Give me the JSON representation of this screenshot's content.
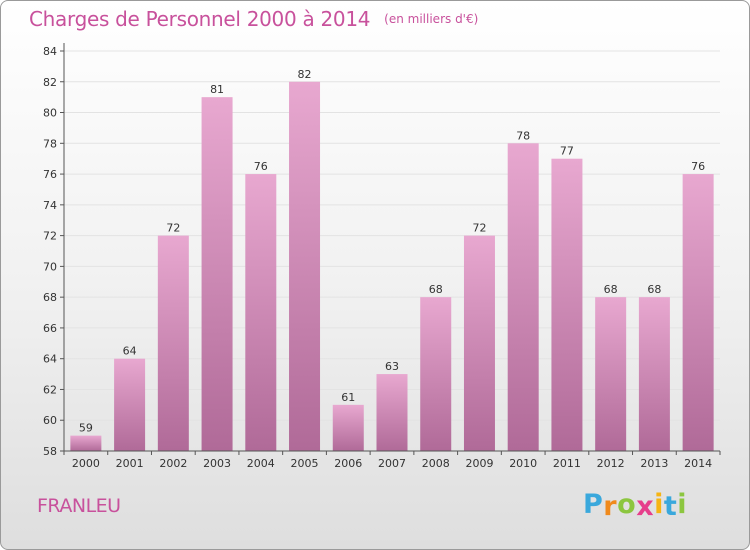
{
  "header": {
    "title": "Charges de Personnel 2000 à 2014",
    "subtitle": "(en milliers d'€)"
  },
  "footer": {
    "commune": "FRANLEU",
    "logo": "Proxiti"
  },
  "colors": {
    "bar_light": "#e8a8d0",
    "bar_dark": "#b06a98",
    "title": "#c8519c",
    "axis": "#555555",
    "grid": "#e3e3e3"
  },
  "logo_letters": [
    {
      "char": "P",
      "color": "#3aa8dc"
    },
    {
      "char": "r",
      "color": "#f08a1c"
    },
    {
      "char": "o",
      "color": "#8cc63f"
    },
    {
      "char": "x",
      "color": "#e63e8b"
    },
    {
      "char": "i",
      "color": "#f6b413"
    },
    {
      "char": "t",
      "color": "#3aa8dc"
    },
    {
      "char": "i",
      "color": "#8cc63f"
    }
  ],
  "chart_data": {
    "type": "bar",
    "title": "Charges de Personnel 2000 à 2014",
    "subtitle": "(en milliers d'€)",
    "categories": [
      "2000",
      "2001",
      "2002",
      "2003",
      "2004",
      "2005",
      "2006",
      "2007",
      "2008",
      "2009",
      "2010",
      "2011",
      "2012",
      "2013",
      "2014"
    ],
    "values": [
      59,
      64,
      72,
      81,
      76,
      82,
      61,
      63,
      68,
      72,
      78,
      77,
      68,
      68,
      76
    ],
    "ylim": [
      58,
      84
    ],
    "yticks": [
      58,
      60,
      62,
      64,
      66,
      68,
      70,
      72,
      74,
      76,
      78,
      80,
      82,
      84
    ],
    "xlabel": "",
    "ylabel": "",
    "grid": true,
    "legend": "none"
  }
}
